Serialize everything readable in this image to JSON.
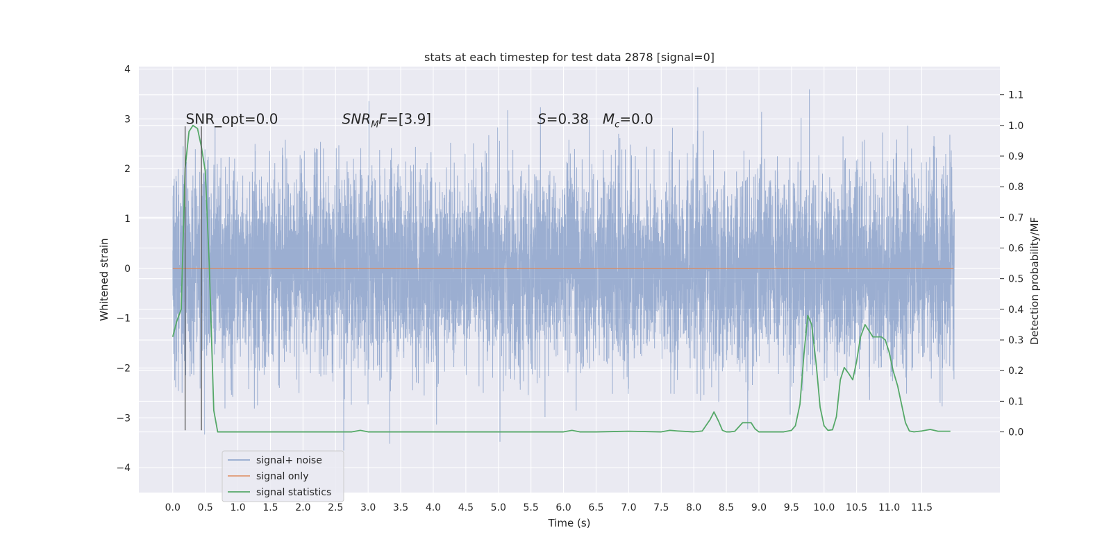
{
  "chart_data": {
    "type": "line",
    "title": "stats at each timestep for test data 2878 [signal=0]",
    "xlabel": "Time (s)",
    "ylabel": "Whitened strain",
    "y2label": "Detection probability/MF",
    "xlim": [
      -0.52,
      12.7
    ],
    "ylim": [
      -4.5,
      4.05
    ],
    "y2lim": [
      -0.198,
      1.192
    ],
    "x_ticks": [
      0.0,
      0.5,
      1.0,
      1.5,
      2.0,
      2.5,
      3.0,
      3.5,
      4.0,
      4.5,
      5.0,
      5.5,
      6.0,
      6.5,
      7.0,
      7.5,
      8.0,
      8.5,
      9.0,
      9.5,
      10.0,
      10.5,
      11.0,
      11.5
    ],
    "x_tick_labels": [
      "0.0",
      "0.5",
      "1.0",
      "1.5",
      "2.0",
      "2.5",
      "3.0",
      "3.5",
      "4.0",
      "4.5",
      "5.0",
      "5.5",
      "6.0",
      "6.5",
      "7.0",
      "7.5",
      "8.0",
      "8.5",
      "9.0",
      "9.5",
      "10.0",
      "10.5",
      "11.0",
      "11.5"
    ],
    "y_ticks": [
      -4,
      -3,
      -2,
      -1,
      0,
      1,
      2,
      3,
      4
    ],
    "y_tick_labels": [
      "−4",
      "−3",
      "−2",
      "−1",
      "0",
      "1",
      "2",
      "3",
      "4"
    ],
    "y2_ticks": [
      0.0,
      0.1,
      0.2,
      0.3,
      0.4,
      0.5,
      0.6,
      0.7,
      0.8,
      0.9,
      1.0,
      1.1
    ],
    "y2_tick_labels": [
      "0.0",
      "0.1",
      "0.2",
      "0.3",
      "0.4",
      "0.5",
      "0.6",
      "0.7",
      "0.8",
      "0.9",
      "1.0",
      "1.1"
    ],
    "grid": true,
    "legend_position": "lower-left",
    "series": [
      {
        "name": "signal+ noise",
        "color": "#4c72b0",
        "axis": "left",
        "duration": 12.0,
        "sampling": "dense noise, values mostly within about ±2.2, extremes near ±3.6"
      },
      {
        "name": "signal only",
        "color": "#dd8452",
        "axis": "left",
        "x": [
          0.0,
          11.99
        ],
        "y": [
          0.0,
          0.0
        ]
      },
      {
        "name": "signal statistics",
        "color": "#55a868",
        "axis": "right",
        "x": [
          0.0,
          0.06,
          0.13,
          0.19,
          0.25,
          0.31,
          0.38,
          0.44,
          0.5,
          0.56,
          0.63,
          0.69,
          0.75,
          1.0,
          1.5,
          2.0,
          2.5,
          2.75,
          2.88,
          3.0,
          3.5,
          4.0,
          4.5,
          5.0,
          5.5,
          6.0,
          6.13,
          6.25,
          6.5,
          7.0,
          7.5,
          7.63,
          7.75,
          8.0,
          8.13,
          8.25,
          8.31,
          8.38,
          8.44,
          8.5,
          8.56,
          8.63,
          8.75,
          8.81,
          8.88,
          8.94,
          9.0,
          9.13,
          9.25,
          9.38,
          9.5,
          9.56,
          9.63,
          9.69,
          9.75,
          9.81,
          9.88,
          9.94,
          10.0,
          10.06,
          10.13,
          10.19,
          10.25,
          10.31,
          10.38,
          10.44,
          10.5,
          10.56,
          10.63,
          10.69,
          10.75,
          10.81,
          10.88,
          10.94,
          11.0,
          11.06,
          11.13,
          11.19,
          11.25,
          11.31,
          11.38,
          11.5,
          11.63,
          11.75,
          11.94
        ],
        "y": [
          0.31,
          0.36,
          0.4,
          0.86,
          0.98,
          1.0,
          0.99,
          0.93,
          0.85,
          0.55,
          0.07,
          0.0,
          0.0,
          0.0,
          0.0,
          0.0,
          0.0,
          0.0,
          0.005,
          0.0,
          0.0,
          0.0,
          0.0,
          0.0,
          0.0,
          0.0,
          0.005,
          0.0,
          0.0,
          0.002,
          0.0,
          0.005,
          0.003,
          0.0,
          0.003,
          0.04,
          0.065,
          0.035,
          0.005,
          0.0,
          0.0,
          0.002,
          0.03,
          0.03,
          0.03,
          0.01,
          0.0,
          0.0,
          0.0,
          0.0,
          0.005,
          0.02,
          0.09,
          0.25,
          0.38,
          0.35,
          0.22,
          0.08,
          0.02,
          0.005,
          0.007,
          0.05,
          0.17,
          0.21,
          0.19,
          0.17,
          0.23,
          0.31,
          0.35,
          0.33,
          0.31,
          0.31,
          0.31,
          0.3,
          0.26,
          0.2,
          0.15,
          0.09,
          0.03,
          0.003,
          0.0,
          0.003,
          0.008,
          0.002,
          0.002
        ]
      }
    ],
    "vertical_markers": [
      {
        "x": 0.19,
        "y_bottom": -3.25,
        "y_top": 2.85,
        "color": "#555555"
      },
      {
        "x": 0.44,
        "y_bottom": -3.25,
        "y_top": 2.85,
        "color": "#555555"
      }
    ],
    "annotations": [
      {
        "text": "SNR_opt=0.0",
        "x": 0.2,
        "y": 3.0
      },
      {
        "base": "SNR",
        "sub": "M",
        "tail": "F=[3.9]",
        "x": 2.6,
        "y": 3.0
      },
      {
        "base": "S",
        "tail": "=0.38",
        "x": 5.6,
        "y": 3.0
      },
      {
        "base": "M",
        "sub": "c",
        "tail": "=0.0",
        "x": 6.6,
        "y": 3.0
      }
    ]
  }
}
